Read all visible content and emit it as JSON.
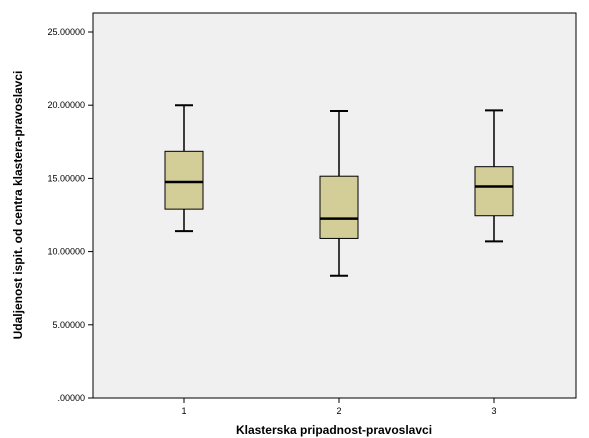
{
  "chart_data": {
    "type": "boxplot",
    "xlabel": "Klasterska pripadnost-pravoslavci",
    "ylabel": "Udaljenost ispit. od centra klastera-pravoslavci",
    "ylim": [
      0,
      25.5
    ],
    "yticks": [
      0,
      5,
      10,
      15,
      20,
      25
    ],
    "ytick_labels": [
      ".00000",
      "5.00000",
      "10.00000",
      "15.00000",
      "20.00000",
      "25.00000"
    ],
    "categories": [
      "1",
      "2",
      "3"
    ],
    "boxes": [
      {
        "category": "1",
        "min": 11.4,
        "q1": 12.9,
        "median": 14.75,
        "q3": 16.85,
        "max": 20.0
      },
      {
        "category": "2",
        "min": 8.35,
        "q1": 10.9,
        "median": 12.25,
        "q3": 15.15,
        "max": 19.6
      },
      {
        "category": "3",
        "min": 10.7,
        "q1": 12.45,
        "median": 14.45,
        "q3": 15.8,
        "max": 19.65
      }
    ],
    "colors": {
      "plot_background": "#f0f0f0",
      "box_fill": "#d3ce97",
      "box_stroke": "#000000",
      "median": "#000000"
    },
    "grid": false,
    "legend": "none"
  }
}
